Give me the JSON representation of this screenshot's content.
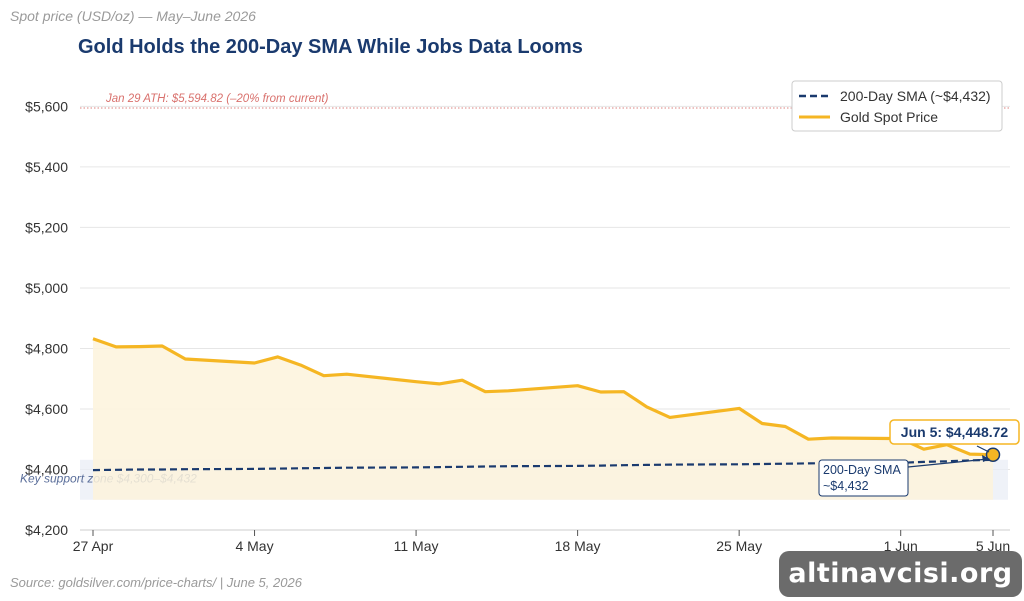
{
  "chart_data": {
    "type": "line",
    "subtitle": "Spot price (USD/oz) — May–June 2026",
    "title": "Gold Holds the 200-Day SMA While Jobs Data Looms",
    "source": "Source: goldsilver.com/price-charts/ | June 5, 2026",
    "x": [
      "2026-04-27",
      "2026-04-28",
      "2026-04-29",
      "2026-04-30",
      "2026-05-01",
      "2026-05-04",
      "2026-05-05",
      "2026-05-06",
      "2026-05-07",
      "2026-05-08",
      "2026-05-11",
      "2026-05-12",
      "2026-05-13",
      "2026-05-14",
      "2026-05-15",
      "2026-05-18",
      "2026-05-19",
      "2026-05-20",
      "2026-05-21",
      "2026-05-22",
      "2026-05-25",
      "2026-05-26",
      "2026-05-27",
      "2026-05-28",
      "2026-05-29",
      "2026-06-01",
      "2026-06-02",
      "2026-06-03",
      "2026-06-04",
      "2026-06-05"
    ],
    "x_ticks": [
      "27 Apr",
      "4 May",
      "11 May",
      "18 May",
      "25 May",
      "1 Jun",
      "5 Jun"
    ],
    "y_ticks": [
      "$4,200",
      "$4,400",
      "$4,600",
      "$4,800",
      "$5,000",
      "$5,200",
      "$5,400",
      "$5,600"
    ],
    "ylim": [
      4200,
      5700
    ],
    "grid": true,
    "series": [
      {
        "name": "Gold Spot Price",
        "color": "#f5b623",
        "values": [
          4832,
          4805,
          4806,
          4808,
          4765,
          4752,
          4772,
          4745,
          4710,
          4715,
          4690,
          4683,
          4695,
          4657,
          4660,
          4677,
          4656,
          4657,
          4607,
          4572,
          4602,
          4552,
          4542,
          4500,
          4504,
          4502,
          4467,
          4482,
          4451,
          4448.72
        ]
      },
      {
        "name": "200-Day SMA (~$4,432)",
        "color": "#1a3a6e",
        "style": "dashed",
        "values": [
          4398,
          4399,
          4400,
          4400,
          4401,
          4402,
          4403,
          4404,
          4405,
          4406,
          4407,
          4408,
          4409,
          4410,
          4411,
          4412,
          4413,
          4414,
          4415,
          4416,
          4417,
          4418,
          4419,
          4420,
          4421,
          4422,
          4425,
          4427,
          4430,
          4432
        ]
      }
    ],
    "ath_line": {
      "value": 5594.82,
      "label": "Jan 29 ATH: $5,594.82  (–20% from current)",
      "color": "#d9716d"
    },
    "support_zone": {
      "low": 4300,
      "high": 4432,
      "label": "Key support zone  $4,300–$4,432"
    },
    "callouts": {
      "last_price": {
        "label": "Jun 5: $4,448.72",
        "value": 4448.72
      },
      "sma": {
        "line1": "200-Day SMA",
        "line2": "~$4,432"
      }
    },
    "legend_placement": "top-right"
  }
}
